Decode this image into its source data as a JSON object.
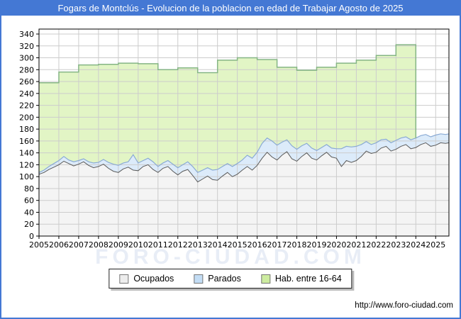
{
  "title_bar": {
    "title": "Fogars de Montclús - Evolucion de la poblacion en edad de Trabajar Agosto de 2025",
    "bg_color": "#4478d4",
    "text_color": "#ffffff"
  },
  "watermark": "FORO-CIUDAD.COM",
  "footer": {
    "url": "http://www.foro-ciudad.com"
  },
  "legend": {
    "items": [
      {
        "label": "Ocupados",
        "color": "#ededed",
        "border": "#777777"
      },
      {
        "label": "Parados",
        "color": "#c3ddf5",
        "border": "#777777"
      },
      {
        "label": "Hab. entre 16-64",
        "color": "#cdeca0",
        "border": "#777777"
      }
    ]
  },
  "chart_data": {
    "type": "area",
    "title": "Fogars de Montclús - Evolucion de la poblacion en edad de Trabajar Agosto de 2025",
    "xlabel": "",
    "ylabel": "",
    "ylim": [
      0,
      340
    ],
    "ytick_step": 20,
    "x_ticks": [
      2005,
      2006,
      2007,
      2008,
      2009,
      2010,
      2011,
      2012,
      2013,
      2014,
      2015,
      2016,
      2017,
      2018,
      2019,
      2020,
      2021,
      2022,
      2023,
      2024,
      2025
    ],
    "x_axis_end": 2025.67,
    "grid_color": "#cccccc",
    "axis_color": "#000000",
    "legend_position": "bottom",
    "series": [
      {
        "name": "Ocupados",
        "type": "area",
        "stack_order": 0,
        "x_start": 2005.0,
        "x_step": 0.25,
        "color_fill": "#f4f4f4",
        "color_line": "#5a5a5a",
        "values": [
          104,
          107,
          112,
          116,
          120,
          126,
          122,
          118,
          121,
          125,
          119,
          115,
          117,
          121,
          114,
          109,
          107,
          113,
          116,
          111,
          110,
          117,
          120,
          112,
          107,
          114,
          117,
          109,
          103,
          109,
          112,
          102,
          91,
          96,
          101,
          95,
          94,
          101,
          107,
          100,
          104,
          111,
          117,
          111,
          119,
          131,
          141,
          133,
          128,
          136,
          142,
          130,
          126,
          134,
          140,
          131,
          128,
          135,
          141,
          133,
          131,
          117,
          127,
          124,
          127,
          134,
          143,
          139,
          141,
          148,
          151,
          143,
          146,
          151,
          154,
          147,
          149,
          154,
          157,
          151,
          153,
          157,
          156,
          157
        ]
      },
      {
        "name": "Parados",
        "type": "area-stacked",
        "stack_order": 1,
        "x_start": 2005.0,
        "x_step": 0.25,
        "color_fill": "#dcebfa",
        "color_line": "#8aaad4",
        "values": [
          3,
          4,
          5,
          6,
          7,
          8,
          6,
          7,
          6,
          5,
          6,
          8,
          7,
          8,
          10,
          12,
          12,
          10,
          9,
          26,
          13,
          10,
          11,
          13,
          10,
          9,
          10,
          12,
          12,
          11,
          13,
          15,
          16,
          15,
          14,
          16,
          18,
          16,
          15,
          17,
          18,
          17,
          19,
          20,
          22,
          25,
          24,
          27,
          25,
          22,
          20,
          22,
          20,
          18,
          16,
          17,
          16,
          14,
          13,
          15,
          16,
          30,
          24,
          26,
          24,
          20,
          16,
          15,
          16,
          14,
          12,
          14,
          15,
          14,
          13,
          15,
          16,
          15,
          14,
          16,
          17,
          15,
          15,
          15
        ]
      },
      {
        "name": "Hab. entre 16-64",
        "type": "step-area-stacked",
        "stack_order": 2,
        "color_fill": "#e2f5c5",
        "color_line": "#85b585",
        "years": [
          2005,
          2006,
          2007,
          2008,
          2009,
          2010,
          2011,
          2012,
          2013,
          2014,
          2015,
          2016,
          2017,
          2018,
          2019,
          2020,
          2021,
          2022,
          2023
        ],
        "values": [
          258,
          276,
          288,
          289,
          291,
          290,
          280,
          283,
          275,
          296,
          300,
          297,
          284,
          279,
          284,
          291,
          296,
          304,
          322
        ],
        "end_x": 2024.0
      }
    ]
  }
}
